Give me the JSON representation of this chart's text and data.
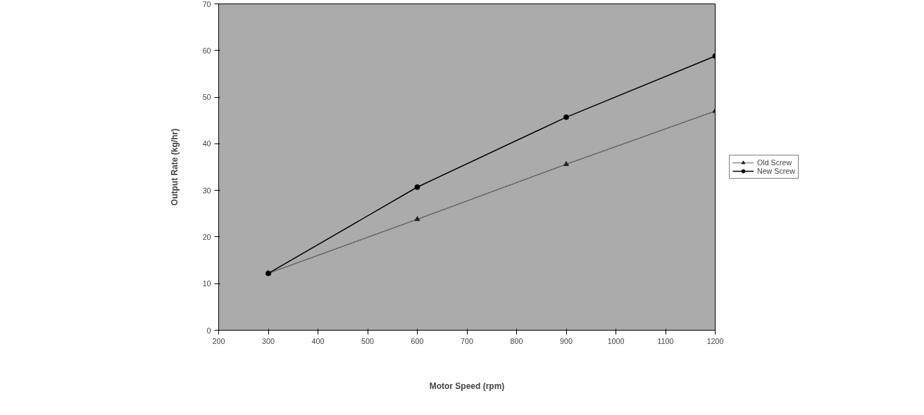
{
  "chart_data": {
    "type": "line",
    "xlabel": "Motor Speed (rpm)",
    "ylabel": "Output Rate (kg/hr)",
    "x": [
      300,
      600,
      900,
      1200
    ],
    "series": [
      {
        "name": "Old Screw",
        "color": "#222222",
        "values": [
          12.2,
          23.8,
          35.6,
          47.0
        ],
        "marker": "triangle",
        "line_style": "dotted"
      },
      {
        "name": "New Screw",
        "color": "#000000",
        "values": [
          12.2,
          30.7,
          45.7,
          58.8
        ],
        "marker": "circle",
        "line_style": "solid"
      }
    ],
    "xlim": [
      200,
      1200
    ],
    "xticks": [
      200,
      300,
      400,
      500,
      600,
      700,
      800,
      900,
      1000,
      1100,
      1200
    ],
    "ylim": [
      0,
      70
    ],
    "yticks": [
      0,
      10,
      20,
      30,
      40,
      50,
      60,
      70
    ],
    "grid": false,
    "legend": "right"
  }
}
